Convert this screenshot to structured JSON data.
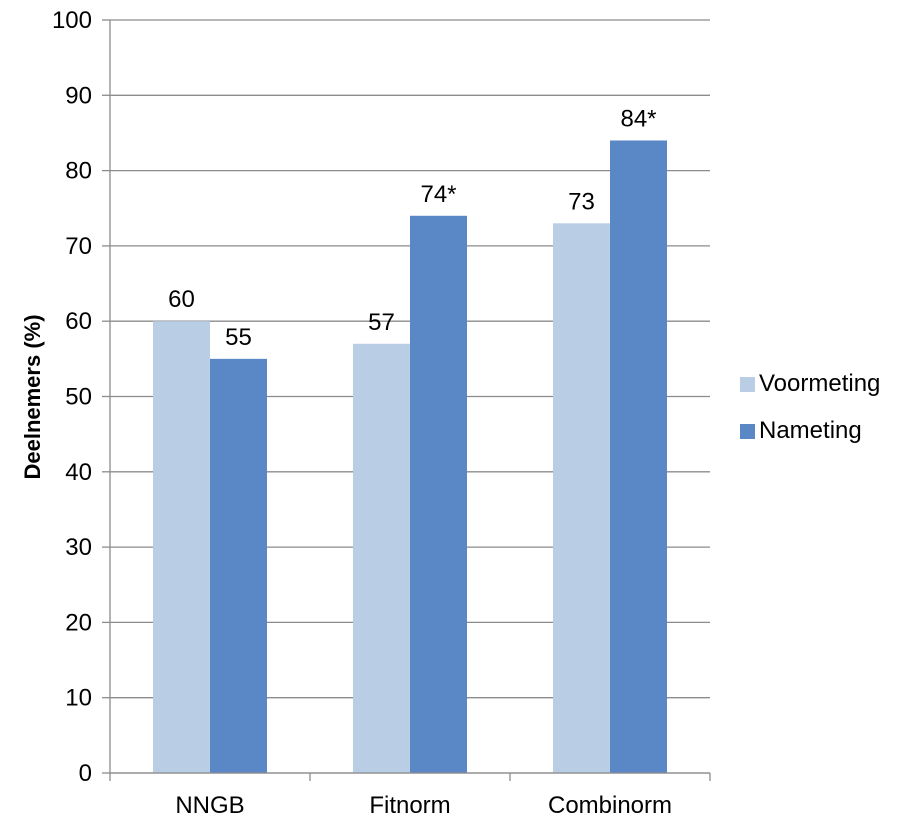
{
  "chart_data": {
    "type": "bar",
    "ylabel": "Deelnemers (%)",
    "ylim": [
      0,
      100
    ],
    "ytick_step": 10,
    "yticks": [
      "0",
      "10",
      "20",
      "30",
      "40",
      "50",
      "60",
      "70",
      "80",
      "90",
      "100"
    ],
    "grid": true,
    "legend_position": "right",
    "categories": [
      "NNGB",
      "Fitnorm",
      "Combinorm"
    ],
    "series": [
      {
        "name": "Voormeting",
        "color": "#b9cde5",
        "values": [
          60,
          57,
          73
        ],
        "labels": [
          "60",
          "57",
          "73"
        ]
      },
      {
        "name": "Nameting",
        "color": "#5a87c6",
        "values": [
          55,
          74,
          84
        ],
        "labels": [
          "55",
          "74*",
          "84*"
        ]
      }
    ]
  }
}
